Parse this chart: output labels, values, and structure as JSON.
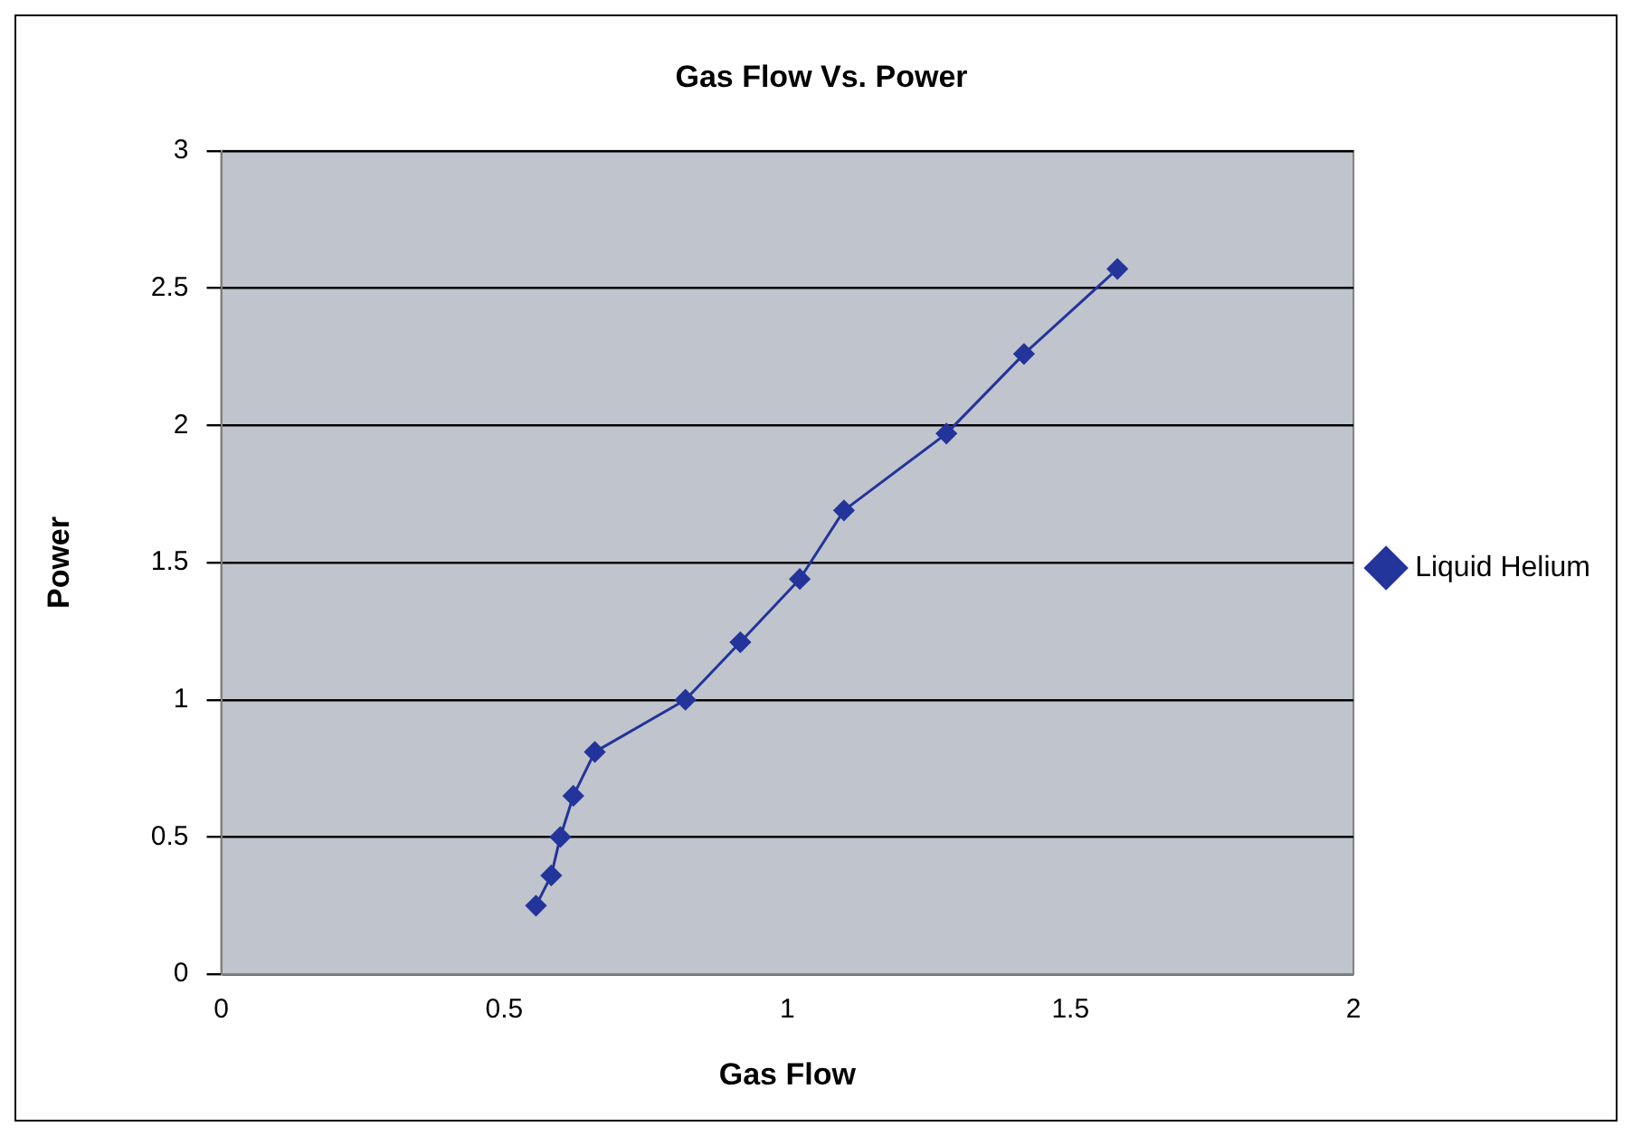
{
  "chart_data": {
    "type": "line",
    "title": "Gas Flow Vs. Power",
    "xlabel": "Gas Flow",
    "ylabel": "Power",
    "series": [
      {
        "name": "Liquid Helium",
        "color": "#23349a",
        "x": [
          0.556,
          0.583,
          0.599,
          0.622,
          0.66,
          0.82,
          0.917,
          1.022,
          1.1,
          1.281,
          1.418,
          1.583
        ],
        "values": [
          0.25,
          0.36,
          0.5,
          0.65,
          0.81,
          1.0,
          1.21,
          1.44,
          1.69,
          1.97,
          2.26,
          2.57
        ]
      }
    ],
    "xlim": [
      0,
      2
    ],
    "xticks": [
      0,
      0.5,
      1,
      1.5,
      2
    ],
    "ylim": [
      0,
      3
    ],
    "yticks": [
      0,
      0.5,
      1,
      1.5,
      2,
      2.5,
      3
    ],
    "grid": "y",
    "legend": "right",
    "marker": "diamond",
    "line_style": "solid"
  }
}
